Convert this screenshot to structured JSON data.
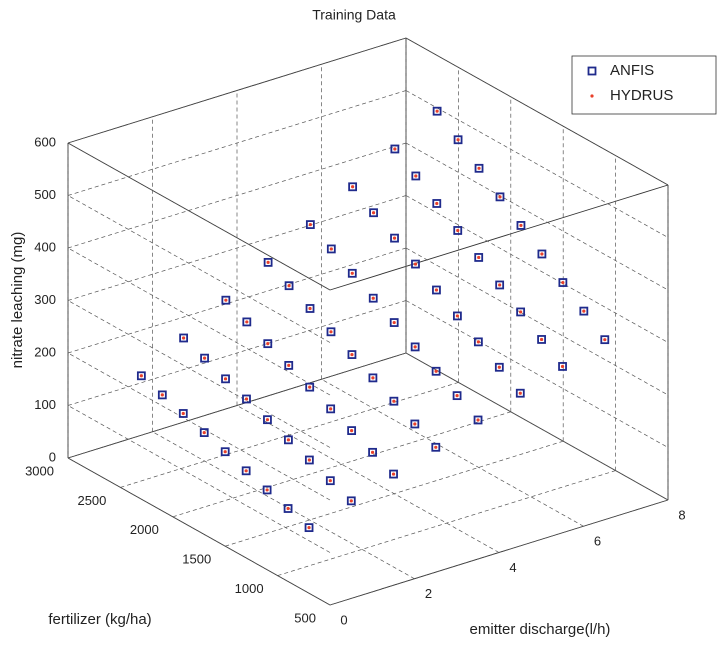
{
  "chart_data": {
    "type": "scatter3d",
    "title": "Training Data",
    "xlabel": "emitter discharge(l/h)",
    "ylabel": "fertilizer (kg/ha)",
    "zlabel": "nitrate leaching (mg)",
    "xlim": [
      0,
      8
    ],
    "xticks": [
      0,
      2,
      4,
      6,
      8
    ],
    "ylim": [
      500,
      3000
    ],
    "yticks": [
      500,
      1000,
      1500,
      2000,
      2500,
      3000
    ],
    "zlim": [
      0,
      600
    ],
    "zticks": [
      0,
      100,
      200,
      300,
      400,
      500,
      600
    ],
    "grid": true,
    "legend": "upper right",
    "x": [
      0,
      0,
      0,
      0,
      0,
      0,
      0,
      0,
      0,
      1,
      1,
      1,
      1,
      1,
      1,
      1,
      1,
      1,
      2,
      2,
      2,
      2,
      2,
      2,
      2,
      2,
      2,
      3,
      3,
      3,
      3,
      3,
      3,
      3,
      3,
      3,
      4,
      4,
      4,
      4,
      4,
      4,
      4,
      4,
      4,
      5,
      5,
      5,
      5,
      5,
      5,
      5,
      5,
      5,
      6,
      6,
      6,
      6,
      6,
      6,
      6,
      6,
      6,
      7,
      7,
      7,
      7,
      7,
      7,
      7,
      7,
      7
    ],
    "y": [
      700,
      900,
      1100,
      1300,
      1500,
      1700,
      1900,
      2100,
      2300,
      700,
      900,
      1100,
      1300,
      1500,
      1700,
      1900,
      2100,
      2300,
      700,
      900,
      1100,
      1300,
      1500,
      1700,
      1900,
      2100,
      2300,
      700,
      900,
      1100,
      1300,
      1500,
      1700,
      1900,
      2100,
      2300,
      700,
      900,
      1100,
      1300,
      1500,
      1700,
      1900,
      2100,
      2300,
      700,
      900,
      1100,
      1300,
      1500,
      1700,
      1900,
      2100,
      2300,
      700,
      900,
      1100,
      1300,
      1500,
      1700,
      1900,
      2100,
      2300,
      700,
      900,
      1100,
      1300,
      1500,
      1700,
      1900,
      2100,
      2300
    ],
    "series": [
      {
        "name": "ANFIS",
        "color": "#1f2a8c",
        "marker": "square",
        "values": [
          125,
          139,
          152,
          166,
          180,
          194,
          208,
          221,
          235,
          151,
          167,
          184,
          200,
          216,
          233,
          249,
          266,
          282,
          177,
          196,
          215,
          234,
          253,
          272,
          291,
          310,
          329,
          203,
          225,
          246,
          268,
          290,
          311,
          333,
          354,
          376,
          230,
          254,
          278,
          302,
          326,
          350,
          375,
          399,
          423,
          256,
          283,
          309,
          336,
          363,
          390,
          417,
          443,
          470,
          282,
          311,
          341,
          370,
          400,
          429,
          458,
          488,
          517,
          308,
          340,
          372,
          404,
          436,
          468,
          500,
          532,
          564
        ]
      },
      {
        "name": "HYDRUS",
        "color": "#e8402a",
        "marker": "star",
        "values": [
          125,
          139,
          152,
          166,
          180,
          194,
          208,
          221,
          235,
          151,
          167,
          184,
          200,
          216,
          233,
          249,
          266,
          282,
          177,
          196,
          215,
          234,
          253,
          272,
          291,
          310,
          329,
          203,
          225,
          246,
          268,
          290,
          311,
          333,
          354,
          376,
          230,
          254,
          278,
          302,
          326,
          350,
          375,
          399,
          423,
          256,
          283,
          309,
          336,
          363,
          390,
          417,
          443,
          470,
          282,
          311,
          341,
          370,
          400,
          429,
          458,
          488,
          517,
          308,
          340,
          372,
          404,
          436,
          468,
          500,
          532,
          564
        ]
      }
    ]
  }
}
